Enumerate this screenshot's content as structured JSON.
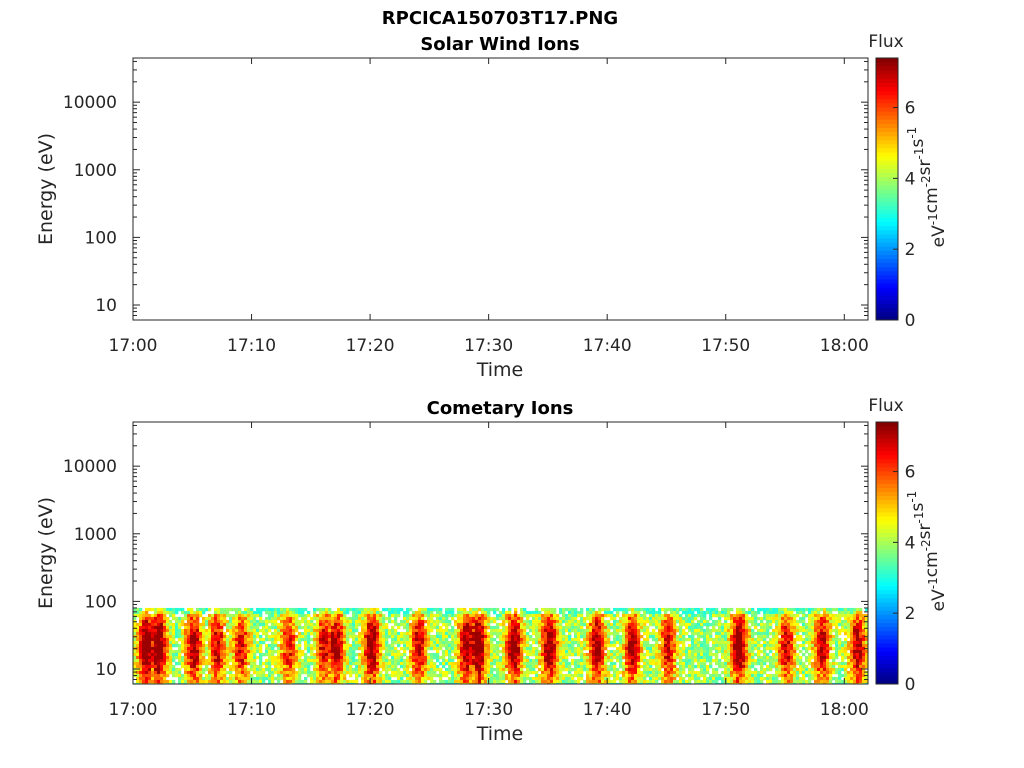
{
  "figure_title": "RPCICA150703T17.PNG",
  "chart_data": [
    {
      "type": "heatmap",
      "title": "Solar Wind Ions",
      "xlabel": "Time",
      "ylabel": "Energy (eV)",
      "x_range": [
        "17:00",
        "18:02"
      ],
      "x_ticks": [
        "17:00",
        "17:10",
        "17:20",
        "17:30",
        "17:40",
        "17:50",
        "18:00"
      ],
      "y_scale": "log",
      "y_range": [
        6,
        45000
      ],
      "y_ticks": [
        "10",
        "100",
        "1000",
        "10000"
      ],
      "colorbar": {
        "label": "Flux",
        "unit": "eV-1 cm-2 sr-1 s-1",
        "range": [
          0,
          7.4
        ],
        "ticks": [
          "0",
          "2",
          "4",
          "6"
        ],
        "colormap": "jet"
      },
      "data": "empty"
    },
    {
      "type": "heatmap",
      "title": "Cometary Ions",
      "xlabel": "Time",
      "ylabel": "Energy (eV)",
      "x_range": [
        "17:00",
        "18:02"
      ],
      "x_ticks": [
        "17:00",
        "17:10",
        "17:20",
        "17:30",
        "17:40",
        "17:50",
        "18:00"
      ],
      "y_scale": "log",
      "y_range": [
        6,
        45000
      ],
      "y_ticks": [
        "10",
        "100",
        "1000",
        "10000"
      ],
      "colorbar": {
        "label": "Flux",
        "unit": "eV-1 cm-2 sr-1 s-1",
        "range": [
          0,
          7.4
        ],
        "ticks": [
          "0",
          "2",
          "4",
          "6"
        ],
        "colormap": "jet"
      },
      "energy_band_eV": [
        6,
        80
      ],
      "flux_range_in_band": [
        3,
        7.2
      ],
      "high_flux_bursts": [
        {
          "time": "17:01",
          "flux": 7.1
        },
        {
          "time": "17:02",
          "flux": 7.2
        },
        {
          "time": "17:05",
          "flux": 6.4
        },
        {
          "time": "17:07",
          "flux": 6.0
        },
        {
          "time": "17:09",
          "flux": 5.8
        },
        {
          "time": "17:13",
          "flux": 5.6
        },
        {
          "time": "17:16",
          "flux": 6.0
        },
        {
          "time": "17:17",
          "flux": 6.4
        },
        {
          "time": "17:20",
          "flux": 6.7
        },
        {
          "time": "17:24",
          "flux": 6.1
        },
        {
          "time": "17:28",
          "flux": 6.5
        },
        {
          "time": "17:29",
          "flux": 7.1
        },
        {
          "time": "17:32",
          "flux": 6.8
        },
        {
          "time": "17:35",
          "flux": 6.6
        },
        {
          "time": "17:39",
          "flux": 6.5
        },
        {
          "time": "17:42",
          "flux": 6.4
        },
        {
          "time": "17:45",
          "flux": 5.9
        },
        {
          "time": "17:51",
          "flux": 6.9
        },
        {
          "time": "17:55",
          "flux": 6.0
        },
        {
          "time": "17:58",
          "flux": 6.2
        },
        {
          "time": "18:01",
          "flux": 6.3
        }
      ]
    }
  ]
}
